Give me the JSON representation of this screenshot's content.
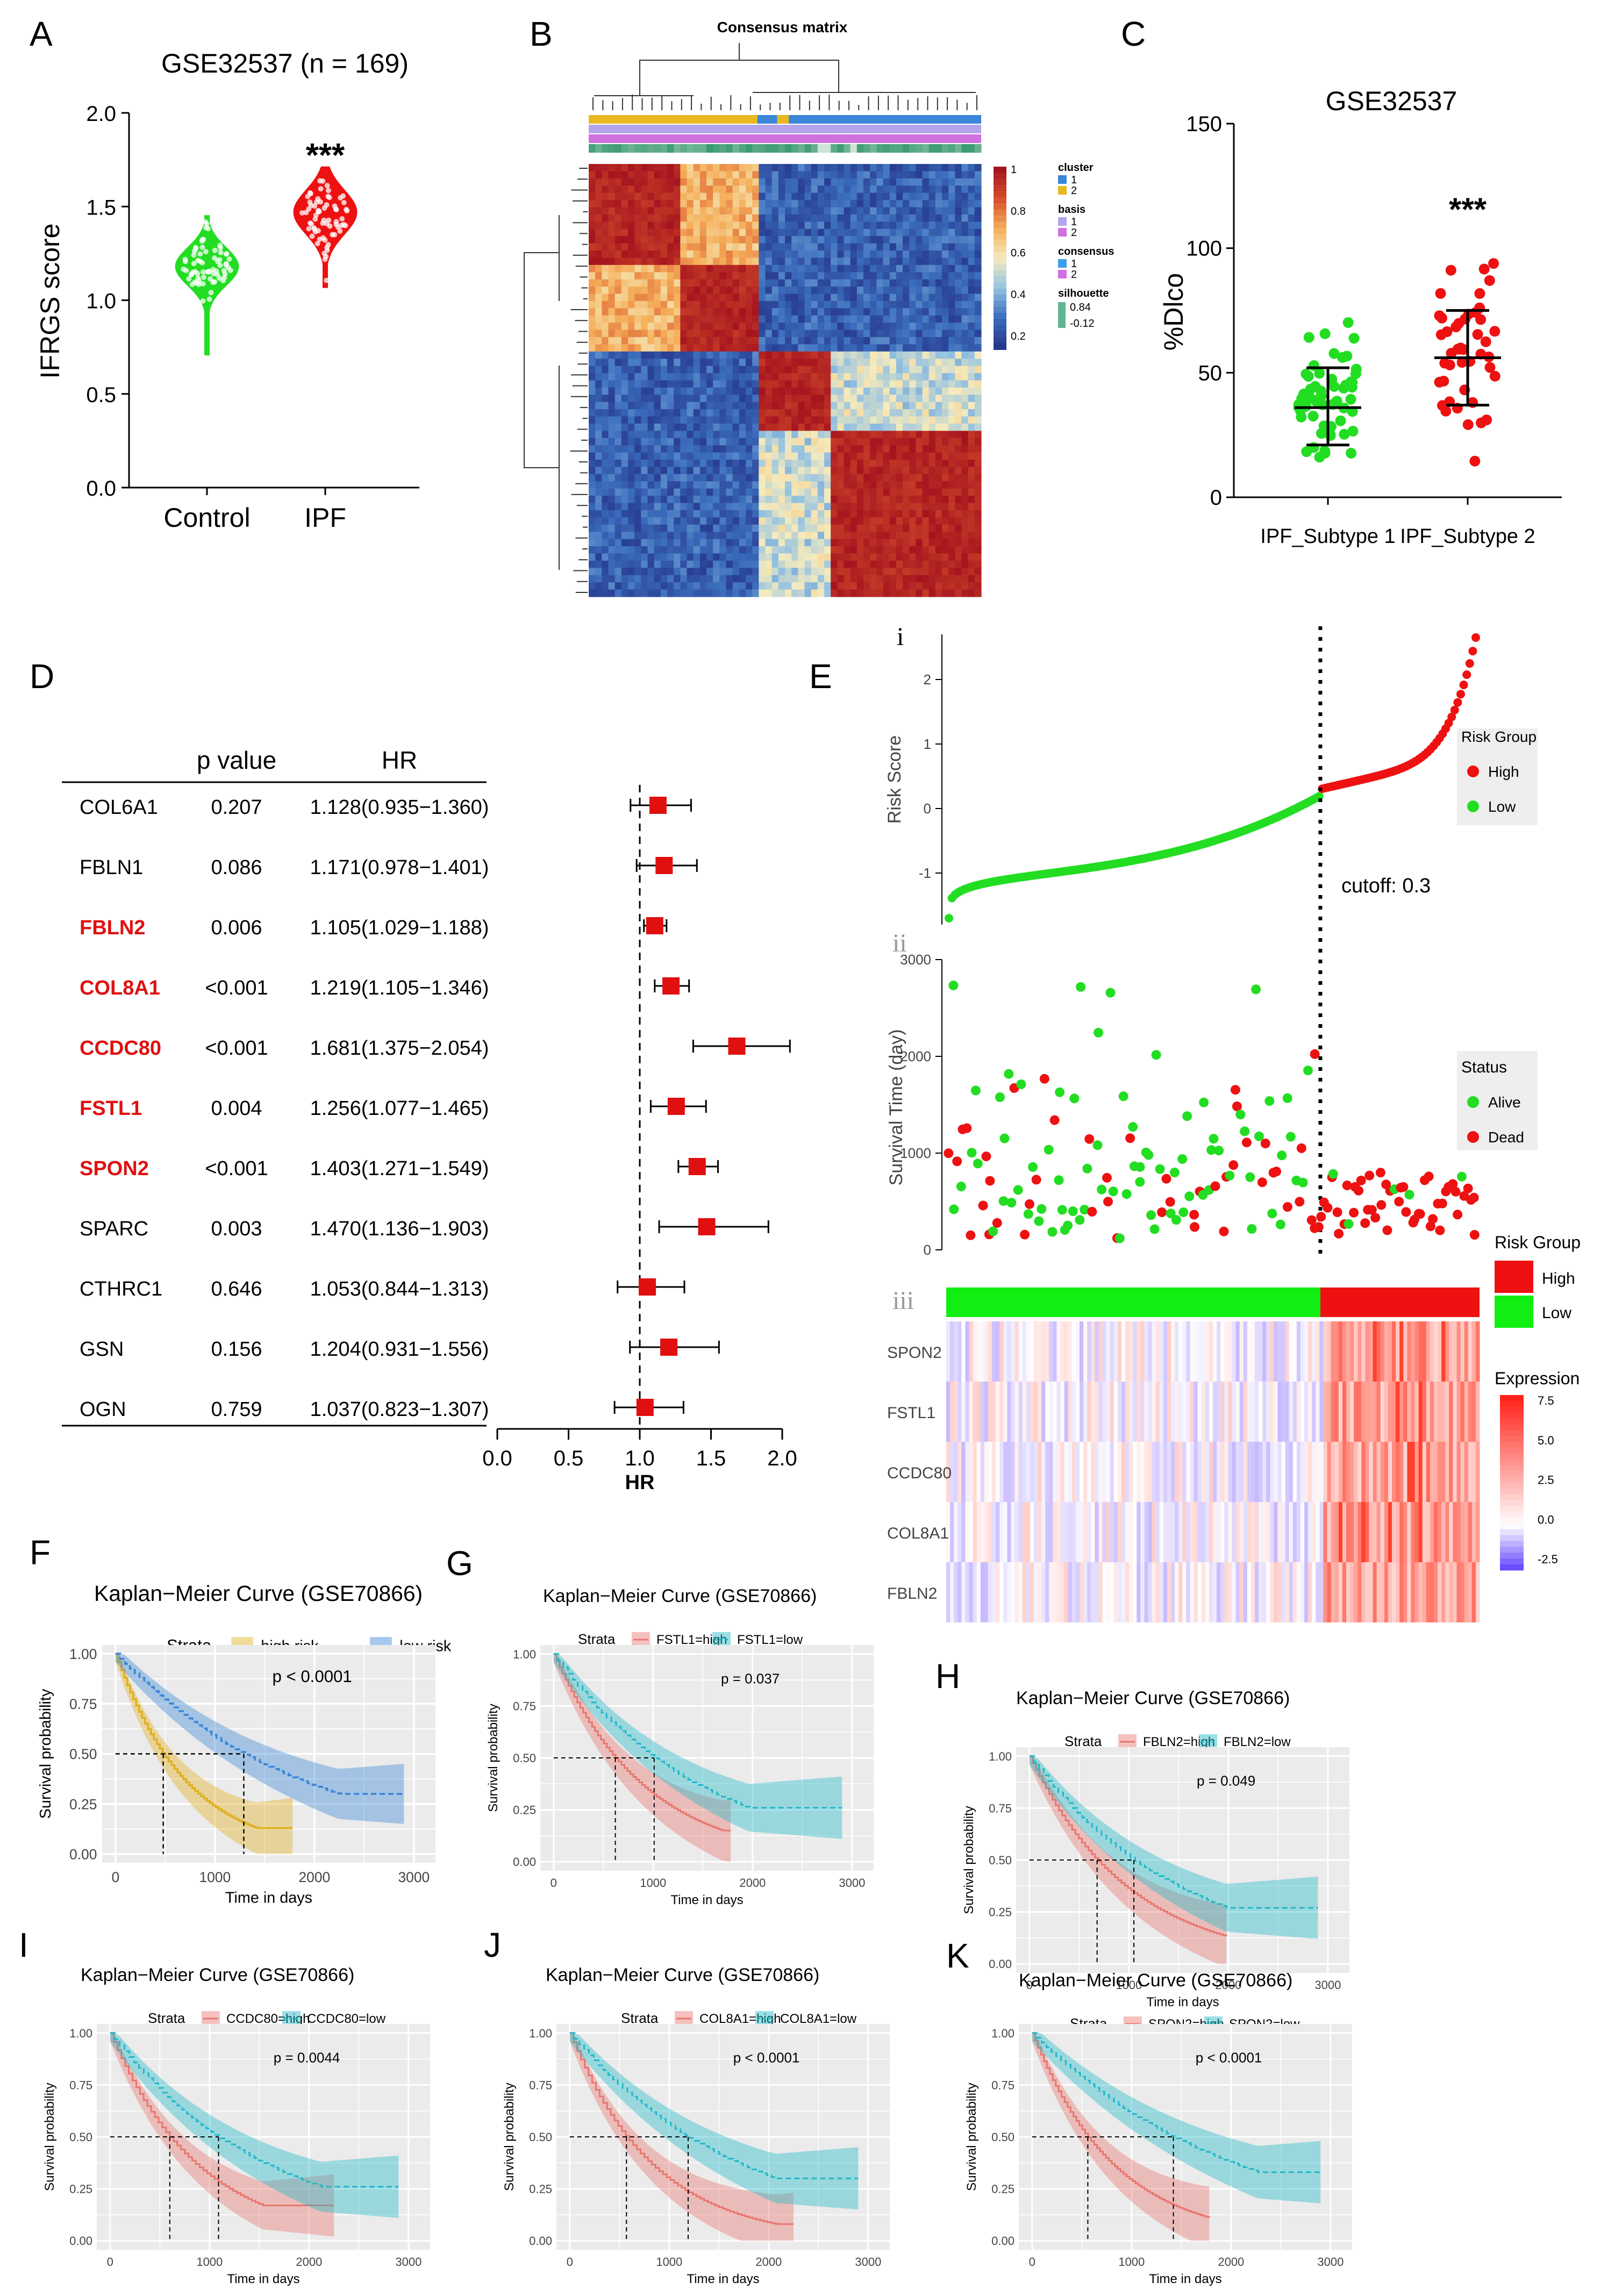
{
  "panels": {
    "A": {
      "letter": "A"
    },
    "B": {
      "letter": "B"
    },
    "C": {
      "letter": "C"
    },
    "D": {
      "letter": "D"
    },
    "E": {
      "letter": "E"
    },
    "F": {
      "letter": "F"
    },
    "G": {
      "letter": "G"
    },
    "H": {
      "letter": "H"
    },
    "I": {
      "letter": "I"
    },
    "J": {
      "letter": "J"
    },
    "K": {
      "letter": "K"
    }
  },
  "colors": {
    "green": "#22dd22",
    "red": "#ee1111",
    "km_high": "#e8766f",
    "km_low": "#20b8c8",
    "km_highrisk": "#e0b020",
    "km_lowrisk": "#3a86d8"
  },
  "chart_data": [
    {
      "id": "A",
      "type": "violin",
      "title": "GSE32537 (n = 169)",
      "ylabel": "IFRGS score",
      "ylim": [
        0.0,
        2.0
      ],
      "yticks": [
        "0.0",
        "0.5",
        "1.0",
        "1.5",
        "2.0"
      ],
      "categories": [
        "Control",
        "IPF"
      ],
      "series": [
        {
          "name": "Control",
          "min": 0.71,
          "q1": 1.12,
          "median": 1.18,
          "q3": 1.24,
          "max": 1.45
        },
        {
          "name": "IPF",
          "min": 1.07,
          "q1": 1.4,
          "median": 1.47,
          "q3": 1.54,
          "max": 1.71
        }
      ],
      "annotation": "***"
    },
    {
      "id": "B",
      "type": "heatmap",
      "title": "Consensus matrix",
      "legend_scale": [
        "1",
        "0.8",
        "0.6",
        "0.4",
        "0.2"
      ],
      "legends": [
        {
          "title": "cluster",
          "items": [
            "1",
            "2"
          ],
          "colors": [
            "#3a86d8",
            "#e8b820"
          ]
        },
        {
          "title": "basis",
          "items": [
            "1",
            "2"
          ],
          "colors": [
            "#b4a4ec",
            "#d070e0"
          ]
        },
        {
          "title": "consensus",
          "items": [
            "1",
            "2"
          ],
          "colors": [
            "#3aa0e8",
            "#d070e0"
          ]
        },
        {
          "title": "silhouette",
          "items": [
            "0.84",
            "-0.12"
          ],
          "colors": [
            "#1a8a5a",
            "#e0f0e8"
          ]
        }
      ]
    },
    {
      "id": "C",
      "type": "scatter",
      "title": "GSE32537",
      "ylabel": "%Dlco",
      "ylim": [
        0,
        150
      ],
      "yticks": [
        "0",
        "50",
        "100",
        "150"
      ],
      "categories": [
        "IPF_Subtype 1",
        "IPF_Subtype 2"
      ],
      "series": [
        {
          "name": "IPF_Subtype 1",
          "mean": 36,
          "sd_low": 21,
          "sd_high": 52
        },
        {
          "name": "IPF_Subtype 2",
          "mean": 56,
          "sd_low": 37,
          "sd_high": 75
        }
      ],
      "annotation": "***"
    },
    {
      "id": "D",
      "type": "forest",
      "header": {
        "pvalue": "p value",
        "hr": "HR"
      },
      "xlabel": "HR",
      "xticks": [
        "0.0",
        "0.5",
        "1.0",
        "1.5",
        "2.0"
      ],
      "xlim": [
        0.0,
        2.0
      ],
      "rows": [
        {
          "gene": "COL6A1",
          "p": "0.207",
          "hr_text": "1.128(0.935−1.360)",
          "hr": 1.128,
          "lo": 0.935,
          "hi": 1.36,
          "sig": false
        },
        {
          "gene": "FBLN1",
          "p": "0.086",
          "hr_text": "1.171(0.978−1.401)",
          "hr": 1.171,
          "lo": 0.978,
          "hi": 1.401,
          "sig": false
        },
        {
          "gene": "FBLN2",
          "p": "0.006",
          "hr_text": "1.105(1.029−1.188)",
          "hr": 1.105,
          "lo": 1.029,
          "hi": 1.188,
          "sig": true
        },
        {
          "gene": "COL8A1",
          "p": "<0.001",
          "hr_text": "1.219(1.105−1.346)",
          "hr": 1.219,
          "lo": 1.105,
          "hi": 1.346,
          "sig": true
        },
        {
          "gene": "CCDC80",
          "p": "<0.001",
          "hr_text": "1.681(1.375−2.054)",
          "hr": 1.681,
          "lo": 1.375,
          "hi": 2.054,
          "sig": true
        },
        {
          "gene": "FSTL1",
          "p": "0.004",
          "hr_text": "1.256(1.077−1.465)",
          "hr": 1.256,
          "lo": 1.077,
          "hi": 1.465,
          "sig": true
        },
        {
          "gene": "SPON2",
          "p": "<0.001",
          "hr_text": "1.403(1.271−1.549)",
          "hr": 1.403,
          "lo": 1.271,
          "hi": 1.549,
          "sig": true
        },
        {
          "gene": "SPARC",
          "p": "0.003",
          "hr_text": "1.470(1.136−1.903)",
          "hr": 1.47,
          "lo": 1.136,
          "hi": 1.903,
          "sig": false
        },
        {
          "gene": "CTHRC1",
          "p": "0.646",
          "hr_text": "1.053(0.844−1.313)",
          "hr": 1.053,
          "lo": 0.844,
          "hi": 1.313,
          "sig": false
        },
        {
          "gene": "GSN",
          "p": "0.156",
          "hr_text": "1.204(0.931−1.556)",
          "hr": 1.204,
          "lo": 0.931,
          "hi": 1.556,
          "sig": false
        },
        {
          "gene": "OGN",
          "p": "0.759",
          "hr_text": "1.037(0.823−1.307)",
          "hr": 1.037,
          "lo": 0.823,
          "hi": 1.307,
          "sig": false
        }
      ]
    },
    {
      "id": "E",
      "type": "risk-plot",
      "sub_labels": [
        "i",
        "ii",
        "iii"
      ],
      "risk_ylabel": "Risk Score",
      "risk_yticks": [
        "2",
        "1",
        "0",
        "-1"
      ],
      "risk_ylim": [
        -1.8,
        2.7
      ],
      "cutoff_label": "cutoff: 0.3",
      "risk_legend": {
        "title": "Risk Group",
        "items": [
          "High",
          "Low"
        ]
      },
      "surv_ylabel": "Survival Time (day)",
      "surv_yticks": [
        "3000",
        "2000",
        "1000",
        "0"
      ],
      "surv_ylim": [
        0,
        3000
      ],
      "status_legend": {
        "title": "Status",
        "items": [
          "Alive",
          "Dead"
        ]
      },
      "heat_genes": [
        "SPON2",
        "FSTL1",
        "CCDC80",
        "COL8A1",
        "FBLN2"
      ],
      "heat_legend_group": {
        "title": "Risk Group",
        "items": [
          "High",
          "Low"
        ]
      },
      "expression_legend": {
        "title": "Expression",
        "ticks": [
          "7.5",
          "5.0",
          "2.5",
          "0.0",
          "-2.5"
        ]
      }
    },
    {
      "id": "F",
      "type": "km",
      "title": "Kaplan−Meier Curve (GSE70866)",
      "strata_label": "Strata",
      "legend": [
        "high risk",
        "low risk"
      ],
      "pvalue": "p < 0.0001",
      "xlabel": "Time in days",
      "ylabel": "Survival probability",
      "xticks": [
        "0",
        "1000",
        "2000",
        "3000"
      ],
      "yticks": [
        "0.00",
        "0.25",
        "0.50",
        "0.75",
        "1.00"
      ],
      "median_high": 480,
      "median_low": 1290,
      "end_high": 1780,
      "end_low": 2900,
      "final_high": 0.13,
      "final_low": 0.3,
      "style": "risk"
    },
    {
      "id": "G",
      "type": "km",
      "title": "Kaplan−Meier Curve (GSE70866)",
      "strata_label": "Strata",
      "legend": [
        "FSTL1=high",
        "FSTL1=low"
      ],
      "pvalue": "p = 0.037",
      "xlabel": "Time in days",
      "ylabel": "Survival probability",
      "xticks": [
        "0",
        "1000",
        "2000",
        "3000"
      ],
      "yticks": [
        "0.00",
        "0.25",
        "0.50",
        "0.75",
        "1.00"
      ],
      "median_high": 620,
      "median_low": 1010,
      "end_high": 1780,
      "end_low": 2900,
      "final_high": 0.15,
      "final_low": 0.26,
      "style": "gene"
    },
    {
      "id": "H",
      "type": "km",
      "title": "Kaplan−Meier Curve (GSE70866)",
      "strata_label": "Strata",
      "legend": [
        "FBLN2=high",
        "FBLN2=low"
      ],
      "pvalue": "p = 0.049",
      "xlabel": "Time in days",
      "ylabel": "Survival probability",
      "xticks": [
        "0",
        "1000",
        "2000",
        "3000"
      ],
      "yticks": [
        "0.00",
        "0.25",
        "0.50",
        "0.75",
        "1.00"
      ],
      "median_high": 680,
      "median_low": 1050,
      "end_high": 1980,
      "end_low": 2900,
      "final_high": 0.13,
      "final_low": 0.27,
      "style": "gene"
    },
    {
      "id": "I",
      "type": "km",
      "title": "Kaplan−Meier Curve (GSE70866)",
      "strata_label": "Strata",
      "legend": [
        "CCDC80=high",
        "CCDC80=low"
      ],
      "pvalue": "p = 0.0044",
      "xlabel": "Time in days",
      "ylabel": "Survival probability",
      "xticks": [
        "0",
        "1000",
        "2000",
        "3000"
      ],
      "yticks": [
        "0.00",
        "0.25",
        "0.50",
        "0.75",
        "1.00"
      ],
      "median_high": 600,
      "median_low": 1090,
      "end_high": 2250,
      "end_low": 2900,
      "final_high": 0.17,
      "final_low": 0.26,
      "style": "gene"
    },
    {
      "id": "J",
      "type": "km",
      "title": "Kaplan−Meier Curve (GSE70866)",
      "strata_label": "Strata",
      "legend": [
        "COL8A1=high",
        "COL8A1=low"
      ],
      "pvalue": "p < 0.0001",
      "xlabel": "Time in days",
      "ylabel": "Survival probability",
      "xticks": [
        "0",
        "1000",
        "2000",
        "3000"
      ],
      "yticks": [
        "0.00",
        "0.25",
        "0.50",
        "0.75",
        "1.00"
      ],
      "median_high": 570,
      "median_low": 1190,
      "end_high": 2250,
      "end_low": 2900,
      "final_high": 0.08,
      "final_low": 0.3,
      "style": "gene"
    },
    {
      "id": "K",
      "type": "km",
      "title": "Kaplan−Meier Curve (GSE70866)",
      "strata_label": "Strata",
      "legend": [
        "SPON2=high",
        "SPON2=low"
      ],
      "pvalue": "p < 0.0001",
      "xlabel": "Time in days",
      "ylabel": "Survival probability",
      "xticks": [
        "0",
        "1000",
        "2000",
        "3000"
      ],
      "yticks": [
        "0.00",
        "0.25",
        "0.50",
        "0.75",
        "1.00"
      ],
      "median_high": 560,
      "median_low": 1420,
      "end_high": 1780,
      "end_low": 2900,
      "final_high": 0.1,
      "final_low": 0.33,
      "style": "gene"
    }
  ]
}
